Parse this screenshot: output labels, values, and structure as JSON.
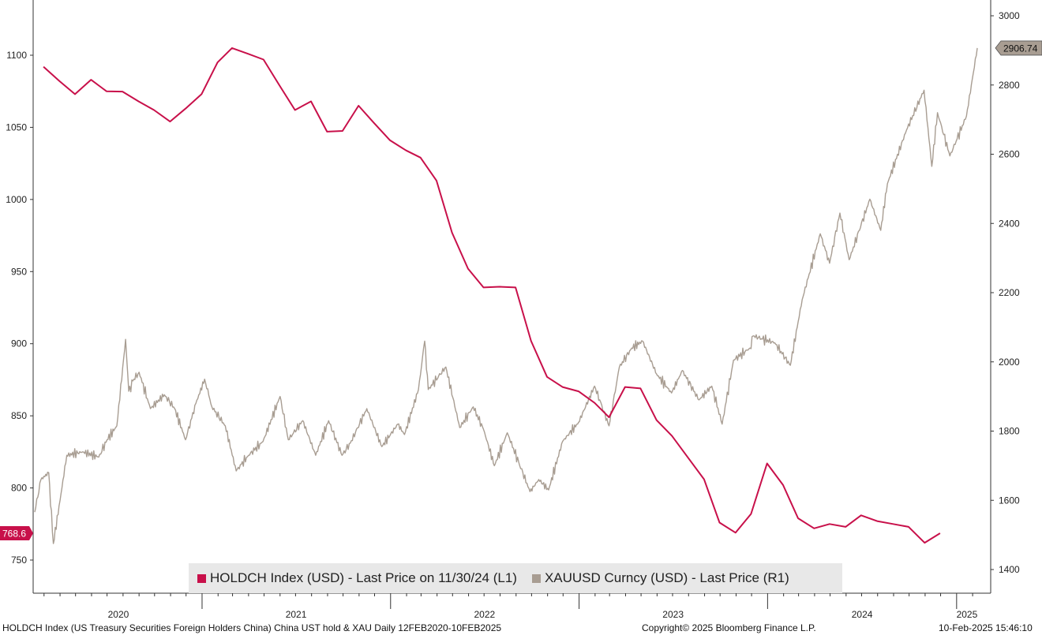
{
  "colors": {
    "holdch": "#c8104a",
    "xau": "#a89d92",
    "axis": "#333333",
    "legend_bg": "#e8e8e8"
  },
  "chart_data": {
    "type": "line",
    "x_axis": {
      "type": "date",
      "start": "2020-02-12",
      "end": "2025-02-10",
      "year_labels": [
        "2020",
        "2021",
        "2022",
        "2023",
        "2024",
        "2025"
      ]
    },
    "y_left": {
      "ticks": [
        750,
        800,
        850,
        900,
        950,
        1000,
        1050,
        1100
      ],
      "range": [
        737,
        1120
      ]
    },
    "y_right": {
      "ticks": [
        1400,
        1600,
        1800,
        2000,
        2200,
        2400,
        2600,
        2800,
        3000
      ],
      "range": [
        1370,
        3010
      ]
    },
    "series": [
      {
        "name": "HOLDCH Index (USD) - Last Price on 11/30/24 (L1)",
        "axis": "left",
        "last_value_label": "768.6",
        "points": [
          [
            "2020-02-29",
            1092
          ],
          [
            "2020-03-31",
            1082
          ],
          [
            "2020-04-30",
            1073
          ],
          [
            "2020-05-31",
            1083
          ],
          [
            "2020-06-30",
            1075
          ],
          [
            "2020-07-31",
            1074.8
          ],
          [
            "2020-08-31",
            1068
          ],
          [
            "2020-09-30",
            1062
          ],
          [
            "2020-10-31",
            1054
          ],
          [
            "2020-11-30",
            1063
          ],
          [
            "2020-12-31",
            1073
          ],
          [
            "2021-01-31",
            1095
          ],
          [
            "2021-02-28",
            1105
          ],
          [
            "2021-03-31",
            1101
          ],
          [
            "2021-04-30",
            1097
          ],
          [
            "2021-05-31",
            1079
          ],
          [
            "2021-06-30",
            1062
          ],
          [
            "2021-07-31",
            1068
          ],
          [
            "2021-08-31",
            1047
          ],
          [
            "2021-09-30",
            1047.5
          ],
          [
            "2021-10-31",
            1065
          ],
          [
            "2021-11-30",
            1053
          ],
          [
            "2021-12-31",
            1041
          ],
          [
            "2022-01-31",
            1034
          ],
          [
            "2022-02-28",
            1029
          ],
          [
            "2022-03-31",
            1013
          ],
          [
            "2022-04-30",
            977
          ],
          [
            "2022-05-31",
            952
          ],
          [
            "2022-06-30",
            939
          ],
          [
            "2022-07-31",
            939.5
          ],
          [
            "2022-08-31",
            939
          ],
          [
            "2022-09-30",
            902
          ],
          [
            "2022-10-31",
            877
          ],
          [
            "2022-11-30",
            870
          ],
          [
            "2022-12-31",
            867
          ],
          [
            "2023-01-31",
            859
          ],
          [
            "2023-02-28",
            849
          ],
          [
            "2023-03-31",
            870
          ],
          [
            "2023-04-30",
            869
          ],
          [
            "2023-05-31",
            847
          ],
          [
            "2023-06-30",
            836
          ],
          [
            "2023-07-31",
            821
          ],
          [
            "2023-08-31",
            806
          ],
          [
            "2023-09-30",
            776
          ],
          [
            "2023-10-31",
            769
          ],
          [
            "2023-11-30",
            782
          ],
          [
            "2023-12-31",
            817
          ],
          [
            "2024-01-31",
            802
          ],
          [
            "2024-02-29",
            779
          ],
          [
            "2024-03-31",
            772
          ],
          [
            "2024-04-30",
            775
          ],
          [
            "2024-05-31",
            773
          ],
          [
            "2024-06-30",
            781
          ],
          [
            "2024-07-31",
            777
          ],
          [
            "2024-08-31",
            775
          ],
          [
            "2024-09-30",
            773
          ],
          [
            "2024-10-31",
            762
          ],
          [
            "2024-11-30",
            768.6
          ]
        ]
      },
      {
        "name": "XAUUSD Curncy (USD) - Last Price (R1)",
        "axis": "right",
        "last_value_label": "2906.74",
        "points": [
          [
            "2020-02-12",
            1566
          ],
          [
            "2020-02-24",
            1660
          ],
          [
            "2020-03-10",
            1680
          ],
          [
            "2020-03-19",
            1475
          ],
          [
            "2020-04-01",
            1600
          ],
          [
            "2020-04-14",
            1730
          ],
          [
            "2020-05-15",
            1740
          ],
          [
            "2020-06-15",
            1725
          ],
          [
            "2020-07-01",
            1775
          ],
          [
            "2020-07-20",
            1815
          ],
          [
            "2020-08-06",
            2065
          ],
          [
            "2020-08-12",
            1915
          ],
          [
            "2020-08-20",
            1945
          ],
          [
            "2020-09-01",
            1970
          ],
          [
            "2020-09-23",
            1865
          ],
          [
            "2020-10-20",
            1905
          ],
          [
            "2020-11-09",
            1865
          ],
          [
            "2020-11-30",
            1775
          ],
          [
            "2020-12-20",
            1880
          ],
          [
            "2021-01-06",
            1950
          ],
          [
            "2021-01-20",
            1870
          ],
          [
            "2021-02-15",
            1815
          ],
          [
            "2021-03-08",
            1685
          ],
          [
            "2021-04-01",
            1730
          ],
          [
            "2021-04-29",
            1770
          ],
          [
            "2021-06-01",
            1900
          ],
          [
            "2021-06-17",
            1775
          ],
          [
            "2021-07-15",
            1830
          ],
          [
            "2021-08-09",
            1730
          ],
          [
            "2021-09-03",
            1830
          ],
          [
            "2021-09-29",
            1730
          ],
          [
            "2021-10-15",
            1765
          ],
          [
            "2021-11-16",
            1865
          ],
          [
            "2021-12-15",
            1755
          ],
          [
            "2022-01-15",
            1820
          ],
          [
            "2022-01-28",
            1790
          ],
          [
            "2022-02-24",
            1920
          ],
          [
            "2022-03-08",
            2060
          ],
          [
            "2022-03-15",
            1920
          ],
          [
            "2022-04-18",
            1985
          ],
          [
            "2022-05-15",
            1810
          ],
          [
            "2022-06-10",
            1870
          ],
          [
            "2022-06-30",
            1805
          ],
          [
            "2022-07-21",
            1700
          ],
          [
            "2022-08-15",
            1795
          ],
          [
            "2022-09-28",
            1625
          ],
          [
            "2022-10-15",
            1660
          ],
          [
            "2022-11-03",
            1630
          ],
          [
            "2022-11-30",
            1770
          ],
          [
            "2022-12-31",
            1825
          ],
          [
            "2023-01-31",
            1930
          ],
          [
            "2023-02-28",
            1815
          ],
          [
            "2023-03-20",
            1985
          ],
          [
            "2023-04-13",
            2040
          ],
          [
            "2023-05-04",
            2060
          ],
          [
            "2023-05-31",
            1965
          ],
          [
            "2023-06-29",
            1910
          ],
          [
            "2023-07-20",
            1975
          ],
          [
            "2023-08-21",
            1890
          ],
          [
            "2023-09-15",
            1930
          ],
          [
            "2023-10-05",
            1820
          ],
          [
            "2023-10-27",
            2005
          ],
          [
            "2023-11-28",
            2040
          ],
          [
            "2023-12-04",
            2075
          ],
          [
            "2024-01-15",
            2055
          ],
          [
            "2024-02-14",
            1990
          ],
          [
            "2024-03-08",
            2180
          ],
          [
            "2024-04-12",
            2370
          ],
          [
            "2024-04-30",
            2285
          ],
          [
            "2024-05-20",
            2430
          ],
          [
            "2024-06-07",
            2295
          ],
          [
            "2024-07-17",
            2470
          ],
          [
            "2024-08-07",
            2380
          ],
          [
            "2024-08-20",
            2515
          ],
          [
            "2024-09-26",
            2670
          ],
          [
            "2024-10-30",
            2785
          ],
          [
            "2024-11-14",
            2565
          ],
          [
            "2024-11-25",
            2720
          ],
          [
            "2024-12-19",
            2595
          ],
          [
            "2025-01-20",
            2710
          ],
          [
            "2025-02-10",
            2906.74
          ]
        ]
      }
    ]
  },
  "legend": {
    "item1": "HOLDCH Index (USD) - Last Price on 11/30/24 (L1)",
    "item2": "XAUUSD Curncy (USD) - Last Price (R1)"
  },
  "footer": {
    "left": "HOLDCH Index (US Treasury Securities Foreign Holders China) China UST hold & XAU  Daily 12FEB2020-10FEB2025",
    "center": "Copyright© 2025 Bloomberg Finance L.P.",
    "right": "10-Feb-2025 15:46:10"
  }
}
